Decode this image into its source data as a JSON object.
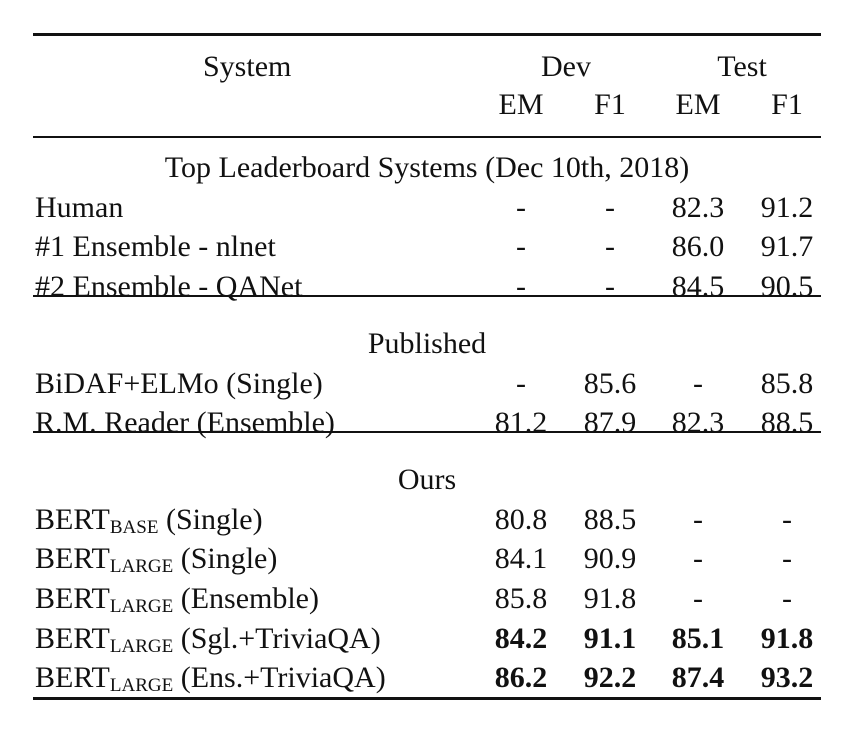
{
  "header": {
    "system": "System",
    "dev": "Dev",
    "test": "Test",
    "columns": [
      "EM",
      "F1",
      "EM",
      "F1"
    ]
  },
  "sections": [
    {
      "title": "Top Leaderboard Systems (Dec 10th, 2018)",
      "rows": [
        {
          "system": "Human",
          "values": [
            "-",
            "-",
            "82.3",
            "91.2"
          ]
        },
        {
          "system": "#1 Ensemble - nlnet",
          "values": [
            "-",
            "-",
            "86.0",
            "91.7"
          ]
        },
        {
          "system": "#2 Ensemble - QANet",
          "values": [
            "-",
            "-",
            "84.5",
            "90.5"
          ]
        }
      ]
    },
    {
      "title": "Published",
      "rows": [
        {
          "system": "BiDAF+ELMo (Single)",
          "values": [
            "-",
            "85.6",
            "-",
            "85.8"
          ]
        },
        {
          "system": "R.M. Reader (Ensemble)",
          "values": [
            "81.2",
            "87.9",
            "82.3",
            "88.5"
          ]
        }
      ]
    },
    {
      "title": "Ours",
      "rows": [
        {
          "system": "BERT",
          "subscript": "BASE",
          "suffix": " (Single)",
          "values": [
            "80.8",
            "88.5",
            "-",
            "-"
          ]
        },
        {
          "system": "BERT",
          "subscript": "LARGE",
          "suffix": " (Single)",
          "values": [
            "84.1",
            "90.9",
            "-",
            "-"
          ]
        },
        {
          "system": "BERT",
          "subscript": "LARGE",
          "suffix": " (Ensemble)",
          "values": [
            "85.8",
            "91.8",
            "-",
            "-"
          ]
        },
        {
          "system": "BERT",
          "subscript": "LARGE",
          "suffix": " (Sgl.+TriviaQA)",
          "values": [
            "84.2",
            "91.1",
            "85.1",
            "91.8"
          ],
          "bold": true
        },
        {
          "system": "BERT",
          "subscript": "LARGE",
          "suffix": " (Ens.+TriviaQA)",
          "values": [
            "86.2",
            "92.2",
            "87.4",
            "93.2"
          ],
          "bold": true
        }
      ]
    }
  ]
}
